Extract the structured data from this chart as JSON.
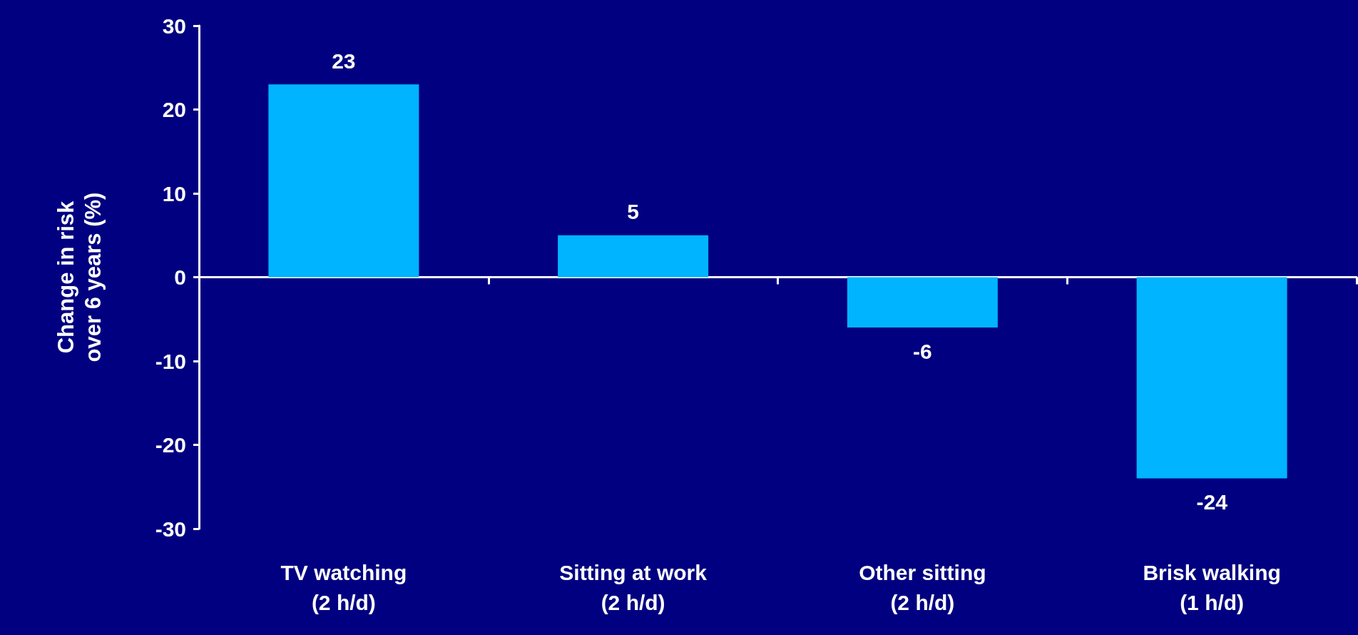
{
  "chart_data": {
    "type": "bar",
    "ylabel": "Change in risk\nover 6 years (%)",
    "categories": [
      "TV watching\n(2 h/d)",
      "Sitting at work\n(2 h/d)",
      "Other sitting\n(2 h/d)",
      "Brisk walking\n(1 h/d)"
    ],
    "values": [
      23,
      5,
      -6,
      -24
    ],
    "color": "#00b4ff",
    "ylim": [
      -30,
      30
    ],
    "yticks": [
      -30,
      -20,
      -10,
      0,
      10,
      20,
      30
    ],
    "data_labels": true
  }
}
